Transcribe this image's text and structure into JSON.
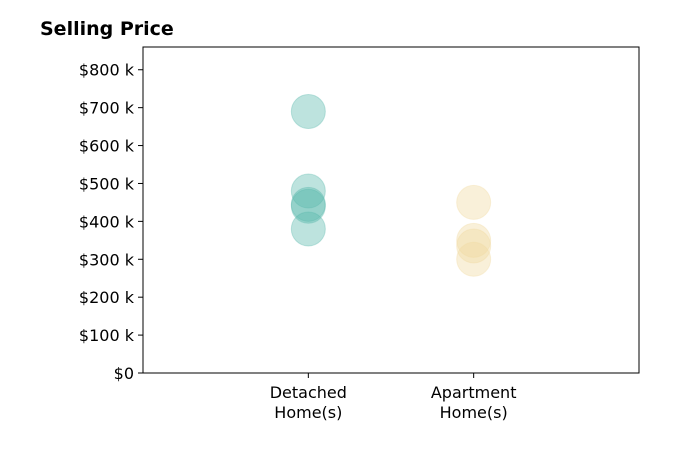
{
  "chart_data": {
    "type": "scatter",
    "title": "Selling Price",
    "xlabel": "",
    "ylabel": "",
    "categories": [
      "Detached\nHome(s)",
      "Apartment\nHome(s)"
    ],
    "ylim": [
      0,
      860000
    ],
    "xlim": [
      -1,
      2
    ],
    "y_ticks": [
      0,
      100000,
      200000,
      300000,
      400000,
      500000,
      600000,
      700000,
      800000
    ],
    "y_tick_labels": [
      "$0",
      "$100 k",
      "$200 k",
      "$300 k",
      "$400 k",
      "$500 k",
      "$600 k",
      "$700 k",
      "$800 k"
    ],
    "grid": false,
    "series": [
      {
        "category_index": 0,
        "color": "#5ab8ac",
        "values": [
          690000,
          480000,
          445000,
          440000,
          380000
        ]
      },
      {
        "category_index": 1,
        "color": "#f0d9a0",
        "values": [
          450000,
          350000,
          335000,
          300000
        ]
      }
    ]
  }
}
